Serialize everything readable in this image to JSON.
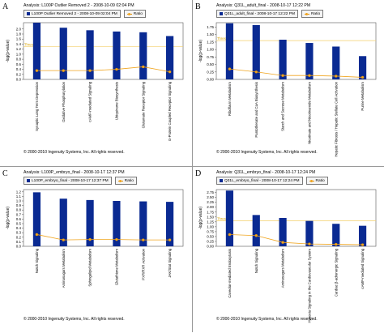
{
  "chart_data": [
    {
      "type": "bar",
      "panel": "A",
      "title": "Analysis: L100P Outlier Removed 2 - 2008-10-09 02:04 PM",
      "legend": {
        "series_label": "L100P Outlier Removed 2 - 2008-10-09 02:04 PM",
        "ratio_label": "Ratio"
      },
      "ylabel": "-log(p-value)",
      "ylim": [
        0,
        2.25
      ],
      "yticks": [
        "0.0",
        "0.2",
        "0.4",
        "0.6",
        "0.8",
        "1.0",
        "1.2",
        "1.4",
        "1.6",
        "1.8",
        "2.0"
      ],
      "threshold_label": "Threshold",
      "threshold": 1.3,
      "categories": [
        "Synaptic Long Term Depression",
        "Oxidative Phosphorylation",
        "cAMP-mediated Signaling",
        "Ubiquinone Biosynthesis",
        "Glutamate Receptor Signaling",
        "G-Protein Coupled Receptor Signaling"
      ],
      "series": [
        {
          "name": "L100P Outlier Removed 2 - 2008-10-09 02:04 PM",
          "values": [
            2.25,
            2.05,
            1.95,
            1.9,
            1.87,
            1.72
          ]
        },
        {
          "name": "Ratio",
          "values": [
            0.35,
            0.35,
            0.35,
            0.4,
            0.5,
            0.3
          ]
        }
      ],
      "copyright": "© 2000-2010 Ingenuity Systems, Inc. All rights reserved.",
      "colors": {
        "bar": "#0a2a92",
        "ratio": "#f0a51f",
        "threshold": "#f3cf6a"
      }
    },
    {
      "type": "bar",
      "panel": "B",
      "title": "Analysis: Q31L_adult_final - 2008-10-17 12:22 PM",
      "legend": {
        "series_label": "Q31L_adult_final - 2008-10-17 12:22 PM",
        "ratio_label": "Ratio"
      },
      "ylabel": "-log(p-value)",
      "ylim": [
        0,
        1.9
      ],
      "yticks": [
        "0.00",
        "0.25",
        "0.50",
        "0.75",
        "1.00",
        "1.25",
        "1.50",
        "1.75"
      ],
      "threshold_label": "Threshold",
      "threshold": 1.3,
      "categories": [
        "Riboflavin Metabolism",
        "Pantothenate and CoA Biosynthesis",
        "Starch and Sucrose Metabolism",
        "Nicotinate and Nicotinamide Metabolism",
        "Hepatic Fibrosis / Hepatic Stellate Cell Activation",
        "Purine Metabolism"
      ],
      "series": [
        {
          "name": "Q31L_adult_final - 2008-10-17 12:22 PM",
          "values": [
            1.88,
            1.82,
            1.33,
            1.22,
            1.1,
            0.78
          ]
        },
        {
          "name": "Ratio",
          "values": [
            0.35,
            0.25,
            0.13,
            0.13,
            0.11,
            0.07
          ]
        }
      ],
      "copyright": "© 2000-2010 Ingenuity Systems, Inc. All rights reserved.",
      "colors": {
        "bar": "#0a2a92",
        "ratio": "#f0a51f",
        "threshold": "#f3cf6a"
      }
    },
    {
      "type": "bar",
      "panel": "C",
      "title": "Analysis: L100P_embryo_final - 2008-10-17 12:37 PM",
      "legend": {
        "series_label": "L100P_embryo_final - 2008-10-17 12:37 PM",
        "ratio_label": "Ratio"
      },
      "ylabel": "-log(p-value)",
      "ylim": [
        0,
        1.25
      ],
      "yticks": [
        "0.0",
        "0.1",
        "0.2",
        "0.3",
        "0.4",
        "0.5",
        "0.6",
        "0.7",
        "0.8",
        "0.9",
        "1.0",
        "1.1",
        "1.2"
      ],
      "threshold_label": "",
      "threshold": null,
      "categories": [
        "Notch Signaling",
        "Aminosugars Metabolism",
        "Sphingolipid Metabolism",
        "Glutathione Metabolism",
        "PXR/RXR Activation",
        "JAK/Stat Signaling"
      ],
      "series": [
        {
          "name": "L100P_embryo_final - 2008-10-17 12:37 PM",
          "values": [
            1.19,
            1.05,
            1.02,
            1.0,
            0.99,
            0.98
          ]
        },
        {
          "name": "Ratio",
          "values": [
            0.26,
            0.14,
            0.15,
            0.15,
            0.14,
            0.14
          ]
        }
      ],
      "copyright": "© 2000-2010 Ingenuity Systems, Inc. All rights reserved.",
      "colors": {
        "bar": "#0a2a92",
        "ratio": "#f0a51f",
        "threshold": "#f3cf6a"
      }
    },
    {
      "type": "bar",
      "panel": "D",
      "title": "Analysis: Q31L_embryo_final - 2008-10-17 12:24 PM",
      "legend": {
        "series_label": "Q31L_embryo_final - 2008-10-17 12:24 PM",
        "ratio_label": "Ratio"
      },
      "ylabel": "-log(p-value)",
      "ylim": [
        0,
        2.9
      ],
      "yticks": [
        "0.00",
        "0.25",
        "0.50",
        "0.75",
        "1.00",
        "1.25",
        "1.50",
        "1.75",
        "2.00",
        "2.25",
        "2.50",
        "2.75"
      ],
      "threshold_label": "Threshold",
      "threshold": 1.3,
      "categories": [
        "Caveolar-mediated Endocytosis",
        "Notch Signaling",
        "Aminosugars Metabolism",
        "Hypoxia Signaling in the Cardiovascular System",
        "Cardiac β-adrenergic Signaling",
        "cAMP-mediated Signaling"
      ],
      "series": [
        {
          "name": "Q31L_embryo_final - 2008-10-17 12:24 PM",
          "values": [
            2.85,
            1.6,
            1.45,
            1.3,
            1.15,
            1.05
          ]
        },
        {
          "name": "Ratio",
          "values": [
            0.6,
            0.55,
            0.2,
            0.12,
            0.1,
            0.08
          ]
        }
      ],
      "copyright": "© 2000-2010 Ingenuity Systems, Inc. All rights reserved.",
      "colors": {
        "bar": "#0a2a92",
        "ratio": "#f0a51f",
        "threshold": "#f3cf6a"
      }
    }
  ]
}
